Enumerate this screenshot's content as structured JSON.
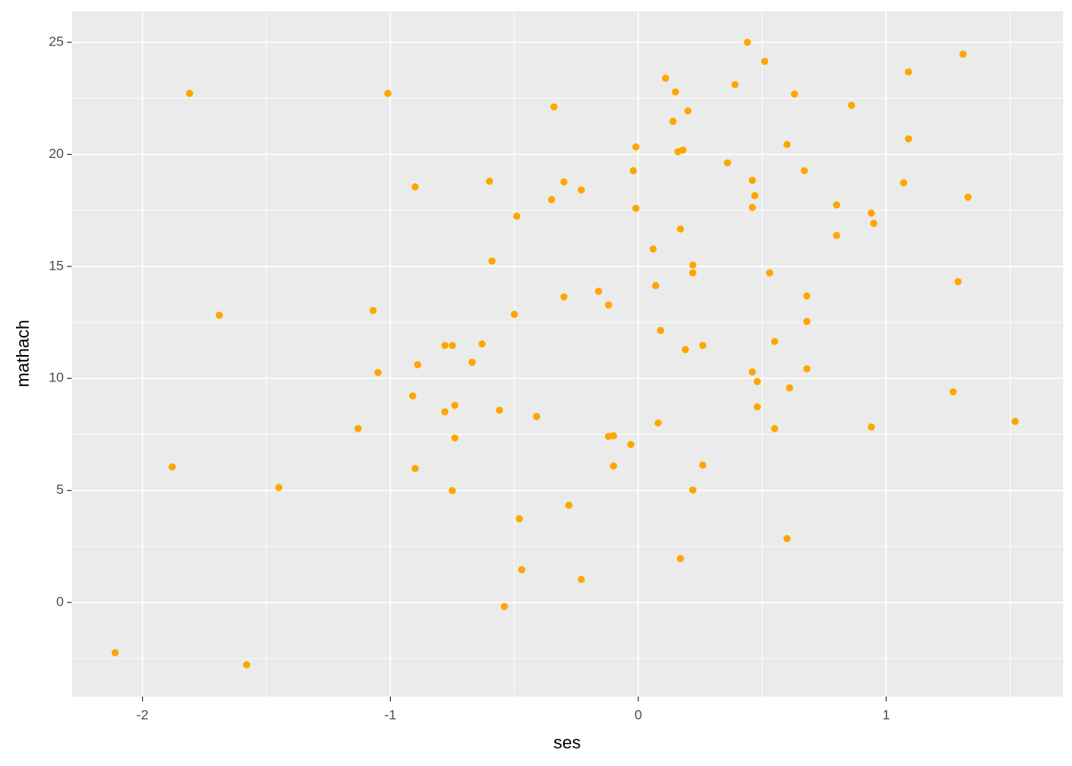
{
  "chart_data": {
    "type": "scatter",
    "x_label": "ses",
    "y_label": "mathach",
    "color": "#FFA500",
    "grid": true,
    "xlim": [
      -2.285,
      1.714
    ],
    "ylim": [
      -4.2,
      26.39
    ],
    "xticks": [
      -2,
      -1,
      0,
      1
    ],
    "yticks": [
      0,
      5,
      10,
      15,
      20,
      25
    ],
    "x": [
      -2.11,
      -1.81,
      -1.88,
      -1.69,
      -1.58,
      -1.45,
      -1.01,
      -1.13,
      -1.07,
      -1.05,
      -0.9,
      -0.91,
      -0.9,
      -0.89,
      -0.78,
      -0.75,
      -0.78,
      -0.74,
      -0.74,
      -0.75,
      -0.67,
      -0.63,
      -0.6,
      -0.59,
      -0.56,
      -0.54,
      -0.5,
      -0.49,
      -0.48,
      -0.47,
      -0.41,
      -0.35,
      -0.34,
      -0.3,
      -0.3,
      -0.28,
      -0.23,
      -0.23,
      -0.16,
      -0.12,
      -0.12,
      -0.1,
      -0.1,
      -0.03,
      -0.02,
      -0.01,
      -0.01,
      0.06,
      0.07,
      0.08,
      0.09,
      0.11,
      0.14,
      0.15,
      0.16,
      0.18,
      0.17,
      0.17,
      0.19,
      0.2,
      0.22,
      0.22,
      0.22,
      0.26,
      0.26,
      0.36,
      0.39,
      0.44,
      0.46,
      0.47,
      0.46,
      0.46,
      0.48,
      0.48,
      0.51,
      0.53,
      0.55,
      0.55,
      0.6,
      0.6,
      0.61,
      0.63,
      0.67,
      0.68,
      0.68,
      0.68,
      0.8,
      0.8,
      0.86,
      0.94,
      0.95,
      0.94,
      1.07,
      1.09,
      1.09,
      1.27,
      1.29,
      1.31,
      1.33,
      1.52
    ],
    "y": [
      -2.24,
      22.72,
      6.05,
      12.82,
      -2.78,
      5.13,
      22.72,
      7.76,
      13.03,
      10.26,
      18.55,
      9.22,
      5.98,
      10.61,
      11.47,
      11.47,
      8.51,
      8.8,
      7.34,
      4.99,
      10.72,
      11.54,
      18.8,
      15.24,
      8.58,
      -0.18,
      12.86,
      17.24,
      3.74,
      1.46,
      8.3,
      17.98,
      22.12,
      18.77,
      13.64,
      4.34,
      18.41,
      1.03,
      13.89,
      13.28,
      7.41,
      7.44,
      6.09,
      7.05,
      19.27,
      20.33,
      17.59,
      15.78,
      14.14,
      8.01,
      12.14,
      23.4,
      21.47,
      22.79,
      20.12,
      20.19,
      16.67,
      1.96,
      11.29,
      21.94,
      15.06,
      14.71,
      5.02,
      11.47,
      6.13,
      19.62,
      23.11,
      25.0,
      18.84,
      18.16,
      17.63,
      10.29,
      9.86,
      8.73,
      24.15,
      14.71,
      11.65,
      7.76,
      20.44,
      2.85,
      9.58,
      22.69,
      19.27,
      13.68,
      12.54,
      10.43,
      17.74,
      16.38,
      22.19,
      17.38,
      16.92,
      7.83,
      18.73,
      23.68,
      20.69,
      9.4,
      14.32,
      24.47,
      18.09,
      8.08
    ]
  }
}
